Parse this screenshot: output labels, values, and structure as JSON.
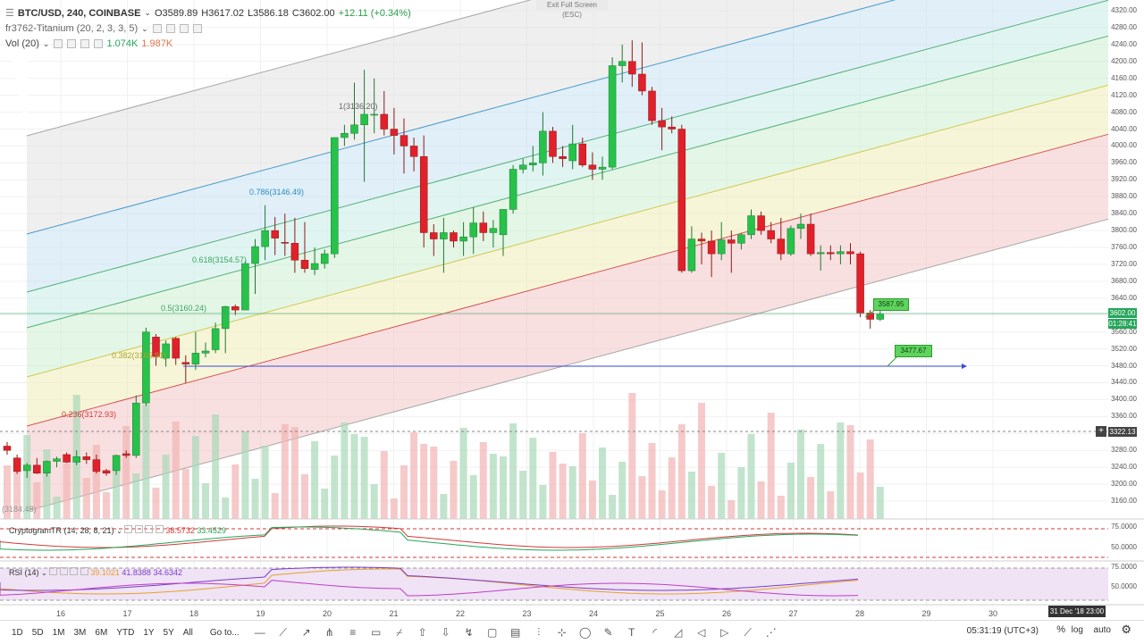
{
  "header": {
    "symbol": "BTC/USD, 240, COINBASE",
    "open": "O3589.89",
    "high": "H3617.02",
    "low": "L3586.18",
    "close": "C3602.00",
    "change": "+12.11 (+0.34%)",
    "indicator1": "fr3762-Titanium (20, 2, 3, 3, 5)",
    "volume_label": "Vol (20)",
    "volume_v1": "1.074K",
    "volume_v2": "1.987K"
  },
  "exit_fullscreen": "Exit Full Screen (ESC)",
  "fib_labels": [
    {
      "text": "1(3136.20)",
      "color": "#666"
    },
    {
      "text": "0.786(3146.49)",
      "color": "#2b8cc4"
    },
    {
      "text": "0.618(3154.57)",
      "color": "#3aa565"
    },
    {
      "text": "0.5(3160.24)",
      "color": "#3aa565"
    },
    {
      "text": "0.382(3165.91)",
      "color": "#a6a82a"
    },
    {
      "text": "0.236(3172.93)",
      "color": "#d13a3a"
    },
    {
      "text": "(3184.48)",
      "color": "#999"
    }
  ],
  "price_tags": {
    "current_price": "3602.00",
    "countdown": "01:28:41",
    "crosshair_price": "3322.13",
    "box1": "3587.95",
    "box2": "3477.67"
  },
  "y_ticks": [
    "4320.00",
    "4280.00",
    "4240.00",
    "4200.00",
    "4160.00",
    "4120.00",
    "4080.00",
    "4040.00",
    "4000.00",
    "3960.00",
    "3920.00",
    "3880.00",
    "3840.00",
    "3800.00",
    "3760.00",
    "3720.00",
    "3680.00",
    "3640.00",
    "3600.00",
    "3560.00",
    "3520.00",
    "3480.00",
    "3440.00",
    "3400.00",
    "3360.00",
    "3320.00",
    "3280.00",
    "3240.00",
    "3200.00",
    "3160.00"
  ],
  "osc1": {
    "name": "CryptogramTR (14, 28, 8, 21)",
    "v1": "38.5732",
    "v2": "33.4529",
    "tick": "75.0000",
    "tick2": "50.0000"
  },
  "rsi": {
    "name": "RSI (14)",
    "v1": "39.1021",
    "v2": "41.8388",
    "v3": "34.6342",
    "tick": "75.0000",
    "tick2": "50.0000"
  },
  "x_ticks": [
    "16",
    "17",
    "18",
    "19",
    "20",
    "21",
    "22",
    "23",
    "24",
    "25",
    "26",
    "27",
    "28",
    "29",
    "30"
  ],
  "date_tag": "31 Dec '18  23:00",
  "range_buttons": [
    "1D",
    "5D",
    "1M",
    "3M",
    "6M",
    "YTD",
    "1Y",
    "5Y",
    "All"
  ],
  "goto": "Go to...",
  "clock": "05:31:19 (UTC+3)",
  "pct": "%",
  "log": "log",
  "auto": "auto",
  "tools": [
    "horizontal-line-icon",
    "trend-line-icon",
    "ray-icon",
    "pitchfork-icon",
    "parallel-channel-icon",
    "rectangle-icon",
    "fib-icon",
    "arrow-up-icon",
    "arrow-down-icon",
    "path-icon",
    "callout-icon",
    "note-icon",
    "vertical-line-icon",
    "cross-line-icon",
    "ellipse-icon",
    "pen-icon",
    "text-icon",
    "arc-icon",
    "curve-icon",
    "flag-left-icon",
    "flag-right-icon",
    "brush-icon",
    "extended-icon"
  ],
  "chart_data": {
    "type": "candlestick",
    "series": [
      {
        "name": "BTC/USD",
        "values": [
          {
            "o": 3290,
            "h": 3300,
            "l": 3270,
            "c": 3280
          },
          {
            "o": 3262,
            "h": 3270,
            "l": 3224,
            "c": 3230
          },
          {
            "o": 3232,
            "h": 3250,
            "l": 3215,
            "c": 3245
          },
          {
            "o": 3245,
            "h": 3262,
            "l": 3224,
            "c": 3226
          },
          {
            "o": 3226,
            "h": 3256,
            "l": 3218,
            "c": 3254
          },
          {
            "o": 3254,
            "h": 3265,
            "l": 3240,
            "c": 3260
          },
          {
            "o": 3270,
            "h": 3275,
            "l": 3250,
            "c": 3252
          },
          {
            "o": 3252,
            "h": 3280,
            "l": 3245,
            "c": 3265
          },
          {
            "o": 3265,
            "h": 3275,
            "l": 3248,
            "c": 3258
          },
          {
            "o": 3258,
            "h": 3270,
            "l": 3225,
            "c": 3230
          },
          {
            "o": 3232,
            "h": 3236,
            "l": 3220,
            "c": 3226
          },
          {
            "o": 3232,
            "h": 3270,
            "l": 3222,
            "c": 3268
          },
          {
            "o": 3272,
            "h": 3280,
            "l": 3262,
            "c": 3268
          },
          {
            "o": 3268,
            "h": 3410,
            "l": 3262,
            "c": 3392
          },
          {
            "o": 3392,
            "h": 3570,
            "l": 3385,
            "c": 3560
          },
          {
            "o": 3548,
            "h": 3555,
            "l": 3480,
            "c": 3502
          },
          {
            "o": 3498,
            "h": 3540,
            "l": 3478,
            "c": 3532
          },
          {
            "o": 3545,
            "h": 3548,
            "l": 3482,
            "c": 3498
          },
          {
            "o": 3488,
            "h": 3505,
            "l": 3440,
            "c": 3484
          },
          {
            "o": 3484,
            "h": 3560,
            "l": 3470,
            "c": 3510
          },
          {
            "o": 3510,
            "h": 3535,
            "l": 3500,
            "c": 3515
          },
          {
            "o": 3518,
            "h": 3582,
            "l": 3510,
            "c": 3568
          },
          {
            "o": 3568,
            "h": 3622,
            "l": 3510,
            "c": 3620
          },
          {
            "o": 3620,
            "h": 3625,
            "l": 3600,
            "c": 3612
          },
          {
            "o": 3612,
            "h": 3728,
            "l": 3660,
            "c": 3722
          },
          {
            "o": 3722,
            "h": 3780,
            "l": 3650,
            "c": 3762
          },
          {
            "o": 3762,
            "h": 3860,
            "l": 3730,
            "c": 3800
          },
          {
            "o": 3800,
            "h": 3832,
            "l": 3742,
            "c": 3782
          },
          {
            "o": 3772,
            "h": 3840,
            "l": 3740,
            "c": 3770
          },
          {
            "o": 3770,
            "h": 3830,
            "l": 3700,
            "c": 3730
          },
          {
            "o": 3730,
            "h": 3820,
            "l": 3700,
            "c": 3710
          },
          {
            "o": 3708,
            "h": 3760,
            "l": 3695,
            "c": 3722
          },
          {
            "o": 3722,
            "h": 3755,
            "l": 3710,
            "c": 3745
          },
          {
            "o": 3745,
            "h": 4020,
            "l": 3735,
            "c": 4020
          },
          {
            "o": 4020,
            "h": 4050,
            "l": 4000,
            "c": 4030
          },
          {
            "o": 4030,
            "h": 4150,
            "l": 4015,
            "c": 4050
          },
          {
            "o": 4050,
            "h": 4180,
            "l": 3915,
            "c": 4075
          },
          {
            "o": 4075,
            "h": 4160,
            "l": 4030,
            "c": 4075
          },
          {
            "o": 4075,
            "h": 4130,
            "l": 4025,
            "c": 4040
          },
          {
            "o": 4040,
            "h": 4090,
            "l": 3980,
            "c": 4025
          },
          {
            "o": 4025,
            "h": 4065,
            "l": 3935,
            "c": 4000
          },
          {
            "o": 4000,
            "h": 4020,
            "l": 3940,
            "c": 3975
          },
          {
            "o": 3975,
            "h": 4025,
            "l": 3760,
            "c": 3795
          },
          {
            "o": 3795,
            "h": 3815,
            "l": 3740,
            "c": 3780
          },
          {
            "o": 3780,
            "h": 3830,
            "l": 3700,
            "c": 3795
          },
          {
            "o": 3795,
            "h": 3800,
            "l": 3760,
            "c": 3775
          },
          {
            "o": 3775,
            "h": 3820,
            "l": 3740,
            "c": 3785
          },
          {
            "o": 3785,
            "h": 3855,
            "l": 3745,
            "c": 3818
          },
          {
            "o": 3818,
            "h": 3845,
            "l": 3775,
            "c": 3795
          },
          {
            "o": 3795,
            "h": 3825,
            "l": 3760,
            "c": 3805
          },
          {
            "o": 3790,
            "h": 3830,
            "l": 3740,
            "c": 3850
          },
          {
            "o": 3850,
            "h": 3955,
            "l": 3840,
            "c": 3945
          },
          {
            "o": 3945,
            "h": 3970,
            "l": 3935,
            "c": 3955
          },
          {
            "o": 3955,
            "h": 4000,
            "l": 3940,
            "c": 3960
          },
          {
            "o": 3960,
            "h": 4080,
            "l": 3930,
            "c": 4035
          },
          {
            "o": 4035,
            "h": 4045,
            "l": 3960,
            "c": 3975
          },
          {
            "o": 3975,
            "h": 4000,
            "l": 3950,
            "c": 3970
          },
          {
            "o": 3965,
            "h": 4050,
            "l": 3945,
            "c": 4005
          },
          {
            "o": 4005,
            "h": 4020,
            "l": 3950,
            "c": 3955
          },
          {
            "o": 3955,
            "h": 3985,
            "l": 3920,
            "c": 3945
          },
          {
            "o": 3945,
            "h": 3975,
            "l": 3920,
            "c": 3950
          },
          {
            "o": 3950,
            "h": 4210,
            "l": 3945,
            "c": 4190
          },
          {
            "o": 4190,
            "h": 4240,
            "l": 4150,
            "c": 4200
          },
          {
            "o": 4200,
            "h": 4250,
            "l": 4140,
            "c": 4170
          },
          {
            "o": 4170,
            "h": 4245,
            "l": 4120,
            "c": 4130
          },
          {
            "o": 4130,
            "h": 4140,
            "l": 4050,
            "c": 4060
          },
          {
            "o": 4060,
            "h": 4090,
            "l": 3990,
            "c": 4045
          },
          {
            "o": 4045,
            "h": 4070,
            "l": 4030,
            "c": 4040
          },
          {
            "o": 4040,
            "h": 4050,
            "l": 3700,
            "c": 3705
          },
          {
            "o": 3705,
            "h": 3810,
            "l": 3700,
            "c": 3780
          },
          {
            "o": 3780,
            "h": 3795,
            "l": 3720,
            "c": 3775
          },
          {
            "o": 3775,
            "h": 3800,
            "l": 3690,
            "c": 3745
          },
          {
            "o": 3745,
            "h": 3820,
            "l": 3730,
            "c": 3778
          },
          {
            "o": 3778,
            "h": 3800,
            "l": 3700,
            "c": 3770
          },
          {
            "o": 3770,
            "h": 3795,
            "l": 3755,
            "c": 3790
          },
          {
            "o": 3790,
            "h": 3850,
            "l": 3780,
            "c": 3835
          },
          {
            "o": 3835,
            "h": 3845,
            "l": 3790,
            "c": 3800
          },
          {
            "o": 3800,
            "h": 3820,
            "l": 3770,
            "c": 3780
          },
          {
            "o": 3780,
            "h": 3830,
            "l": 3730,
            "c": 3745
          },
          {
            "o": 3745,
            "h": 3812,
            "l": 3740,
            "c": 3805
          },
          {
            "o": 3805,
            "h": 3840,
            "l": 3780,
            "c": 3815
          },
          {
            "o": 3815,
            "h": 3840,
            "l": 3740,
            "c": 3745
          },
          {
            "o": 3745,
            "h": 3765,
            "l": 3705,
            "c": 3748
          },
          {
            "o": 3748,
            "h": 3765,
            "l": 3730,
            "c": 3745
          },
          {
            "o": 3745,
            "h": 3765,
            "l": 3720,
            "c": 3750
          },
          {
            "o": 3750,
            "h": 3770,
            "l": 3720,
            "c": 3745
          },
          {
            "o": 3745,
            "h": 3750,
            "l": 3595,
            "c": 3605
          },
          {
            "o": 3605,
            "h": 3612,
            "l": 3568,
            "c": 3590
          },
          {
            "o": 3590,
            "h": 3617,
            "l": 3586,
            "c": 3602
          }
        ]
      }
    ],
    "y_range": [
      3140,
      4330
    ],
    "x_label_days": [
      "16",
      "17",
      "18",
      "19",
      "20",
      "21",
      "22",
      "23",
      "24",
      "25",
      "26",
      "27",
      "28",
      "29",
      "30"
    ],
    "grid": true
  }
}
